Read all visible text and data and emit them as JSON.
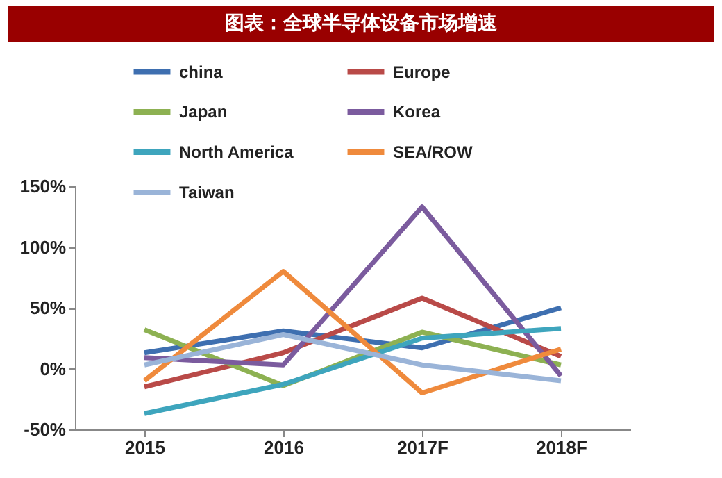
{
  "chart_data": {
    "type": "line",
    "title": "图表：全球半导体设备市场增速",
    "categories": [
      "2015",
      "2016",
      "2017F",
      "2018F"
    ],
    "series": [
      {
        "name": "china",
        "color": "#3e6fb0",
        "values": [
          13,
          31,
          17,
          50
        ]
      },
      {
        "name": "Europe",
        "color": "#b94a48",
        "values": [
          -15,
          13,
          58,
          10
        ]
      },
      {
        "name": "Japan",
        "color": "#8db152",
        "values": [
          32,
          -14,
          30,
          3
        ]
      },
      {
        "name": "Korea",
        "color": "#7b5b9e",
        "values": [
          9,
          3,
          133,
          -6
        ]
      },
      {
        "name": "North America",
        "color": "#3ea5bd",
        "values": [
          -37,
          -13,
          25,
          33
        ]
      },
      {
        "name": "SEA/ROW",
        "color": "#ef8a3c",
        "values": [
          -10,
          80,
          -20,
          16
        ]
      },
      {
        "name": "Taiwan",
        "color": "#9ab4d8",
        "values": [
          3,
          28,
          3,
          -10
        ]
      }
    ],
    "ylim": [
      -50,
      150
    ],
    "yticks": [
      {
        "value": -50,
        "label": "-50%"
      },
      {
        "value": 0,
        "label": "0%"
      },
      {
        "value": 50,
        "label": "50%"
      },
      {
        "value": 100,
        "label": "100%"
      },
      {
        "value": 150,
        "label": "150%"
      }
    ],
    "legend": "top",
    "grid": false,
    "marker": "none",
    "line_style": "solid"
  }
}
